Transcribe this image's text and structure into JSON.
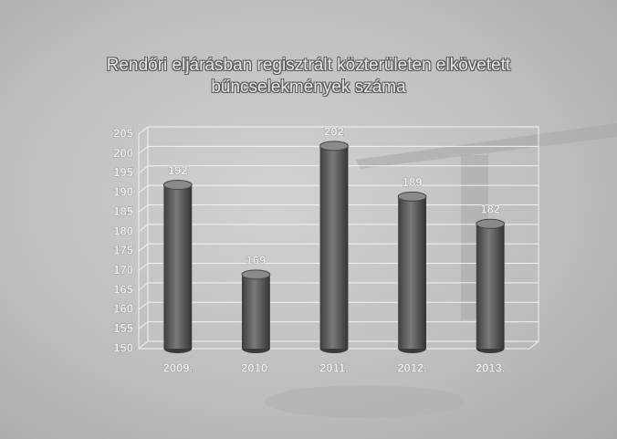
{
  "chart_data": {
    "type": "bar",
    "title": "Rendőri eljárásban regisztrált közterületen elkövetett bűncselekmények száma",
    "categories": [
      "2009.",
      "2010.",
      "2011.",
      "2012.",
      "2013."
    ],
    "values": [
      192,
      169,
      202,
      189,
      182
    ],
    "color": "#5a5a5a",
    "ylim": [
      150,
      205
    ],
    "yticks": [
      150,
      155,
      160,
      165,
      170,
      175,
      180,
      185,
      190,
      195,
      200,
      205
    ],
    "grid": true
  }
}
